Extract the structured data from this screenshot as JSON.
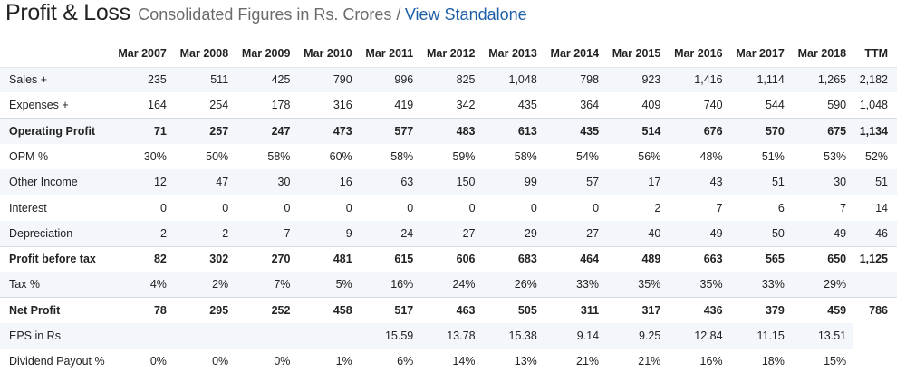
{
  "header": {
    "title": "Profit & Loss",
    "subtitle": "Consolidated Figures in Rs. Crores /",
    "link": "View Standalone"
  },
  "table": {
    "columns": [
      "",
      "Mar 2007",
      "Mar 2008",
      "Mar 2009",
      "Mar 2010",
      "Mar 2011",
      "Mar 2012",
      "Mar 2013",
      "Mar 2014",
      "Mar 2015",
      "Mar 2016",
      "Mar 2017",
      "Mar 2018",
      "TTM"
    ],
    "rows": [
      {
        "label": "Sales +",
        "bold": false,
        "values": [
          "235",
          "511",
          "425",
          "790",
          "996",
          "825",
          "1,048",
          "798",
          "923",
          "1,416",
          "1,114",
          "1,265",
          "2,182"
        ]
      },
      {
        "label": "Expenses +",
        "bold": false,
        "values": [
          "164",
          "254",
          "178",
          "316",
          "419",
          "342",
          "435",
          "364",
          "409",
          "740",
          "544",
          "590",
          "1,048"
        ]
      },
      {
        "label": "Operating Profit",
        "bold": true,
        "values": [
          "71",
          "257",
          "247",
          "473",
          "577",
          "483",
          "613",
          "435",
          "514",
          "676",
          "570",
          "675",
          "1,134"
        ]
      },
      {
        "label": "OPM %",
        "bold": false,
        "values": [
          "30%",
          "50%",
          "58%",
          "60%",
          "58%",
          "59%",
          "58%",
          "54%",
          "56%",
          "48%",
          "51%",
          "53%",
          "52%"
        ]
      },
      {
        "label": "Other Income",
        "bold": false,
        "values": [
          "12",
          "47",
          "30",
          "16",
          "63",
          "150",
          "99",
          "57",
          "17",
          "43",
          "51",
          "30",
          "51"
        ]
      },
      {
        "label": "Interest",
        "bold": false,
        "values": [
          "0",
          "0",
          "0",
          "0",
          "0",
          "0",
          "0",
          "0",
          "2",
          "7",
          "6",
          "7",
          "14"
        ]
      },
      {
        "label": "Depreciation",
        "bold": false,
        "values": [
          "2",
          "2",
          "7",
          "9",
          "24",
          "27",
          "29",
          "27",
          "40",
          "49",
          "50",
          "49",
          "46"
        ]
      },
      {
        "label": "Profit before tax",
        "bold": true,
        "values": [
          "82",
          "302",
          "270",
          "481",
          "615",
          "606",
          "683",
          "464",
          "489",
          "663",
          "565",
          "650",
          "1,125"
        ]
      },
      {
        "label": "Tax %",
        "bold": false,
        "values": [
          "4%",
          "2%",
          "7%",
          "5%",
          "16%",
          "24%",
          "26%",
          "33%",
          "35%",
          "35%",
          "33%",
          "29%",
          ""
        ]
      },
      {
        "label": "Net Profit",
        "bold": true,
        "values": [
          "78",
          "295",
          "252",
          "458",
          "517",
          "463",
          "505",
          "311",
          "317",
          "436",
          "379",
          "459",
          "786"
        ]
      },
      {
        "label": "EPS in Rs",
        "bold": false,
        "values": [
          "",
          "",
          "",
          "",
          "15.59",
          "13.78",
          "15.38",
          "9.14",
          "9.25",
          "12.84",
          "11.15",
          "13.51",
          ""
        ]
      },
      {
        "label": "Dividend Payout %",
        "bold": false,
        "values": [
          "0%",
          "0%",
          "0%",
          "1%",
          "6%",
          "14%",
          "13%",
          "21%",
          "21%",
          "16%",
          "18%",
          "15%",
          ""
        ]
      }
    ]
  }
}
